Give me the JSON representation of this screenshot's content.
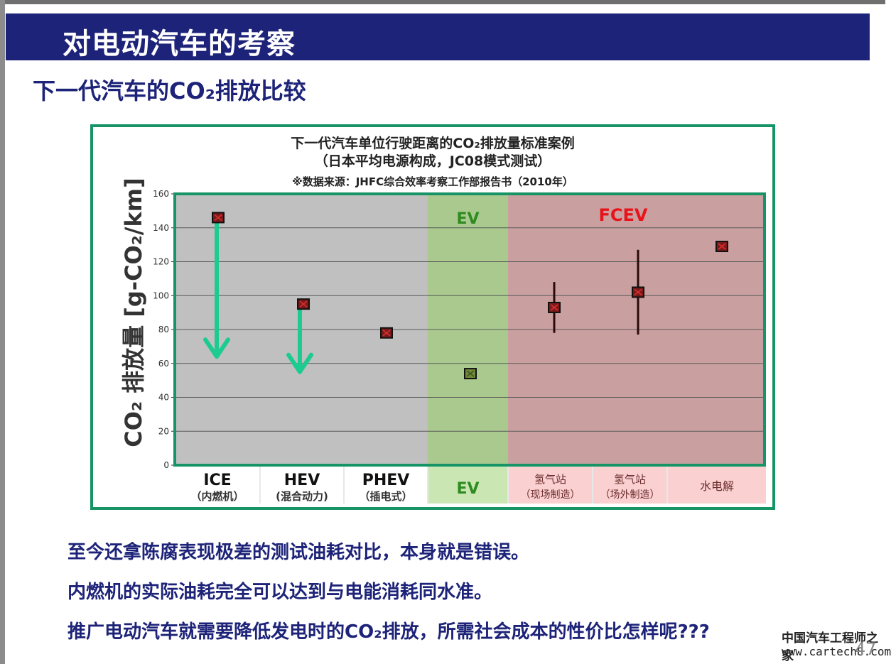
{
  "slide": {
    "title": "对电动汽车的考察",
    "subtitle": "下一代汽车的CO₂排放比较",
    "bullets": [
      "至今还拿陈腐表现极差的测试油耗对比，本身就是错误。",
      "内燃机的实际油耗完全可以达到与电能消耗同水准。",
      "推广电动汽车就需要降低发电时的CO₂排放，所需社会成本的性价比怎样呢???"
    ],
    "watermark": "中国汽车工程师之家",
    "watermark_url": "www.cartech8.com",
    "page_number": "47"
  },
  "chart_data": {
    "type": "scatter",
    "title_line1": "下一代汽车单位行驶距离的CO₂排放量标准案例",
    "title_line2": "（日本平均电源构成，JC08模式测试）",
    "source": "※数据来源：JHFC综合效率考察工作部报告书（2010年）",
    "ylabel": "CO₂ 排放量 [g-CO₂/km]",
    "ylim": [
      0,
      160
    ],
    "yticks": [
      0,
      20,
      40,
      60,
      80,
      100,
      120,
      140,
      160
    ],
    "grid": true,
    "categories": [
      {
        "label": "ICE",
        "sub": "（内燃机）",
        "group": "conventional"
      },
      {
        "label": "HEV",
        "sub": "(混合动力)",
        "group": "conventional"
      },
      {
        "label": "PHEV",
        "sub": "（插电式）",
        "group": "conventional"
      },
      {
        "label": "EV",
        "sub": "",
        "group": "ev"
      },
      {
        "label": "氢气站",
        "sub": "（现场制造）",
        "group": "fcev"
      },
      {
        "label": "氢气站",
        "sub": "（场外制造）",
        "group": "fcev"
      },
      {
        "label": "水电解",
        "sub": "",
        "group": "fcev"
      }
    ],
    "points": [
      {
        "category": 0,
        "value": 146
      },
      {
        "category": 1,
        "value": 95
      },
      {
        "category": 2,
        "value": 78
      },
      {
        "category": 3,
        "value": 54
      },
      {
        "category": 4,
        "value": 93,
        "range": [
          78,
          108
        ]
      },
      {
        "category": 5,
        "value": 102,
        "range": [
          77,
          127
        ]
      },
      {
        "category": 6,
        "value": 129
      }
    ],
    "region_labels": {
      "ev": "EV",
      "fcev": "FCEV"
    },
    "arrows": [
      {
        "category": 0,
        "from": 143,
        "to": 64
      },
      {
        "category": 1,
        "from": 96,
        "to": 55
      }
    ],
    "colors": {
      "conventional_bg": "#c0c0c0",
      "ev_bg": "#a9c98e",
      "fcev_bg": "#c9a09f",
      "ev_label": "#2e8b20",
      "fcev_label": "#e8141b",
      "arrow": "#1ccb90",
      "frame": "#179466",
      "marker_fill": "#7a1a1a",
      "marker_edge": "#111111",
      "ev_cat_bg": "#c9e6b3",
      "fcev_cat_bg": "#fad0d0"
    }
  }
}
